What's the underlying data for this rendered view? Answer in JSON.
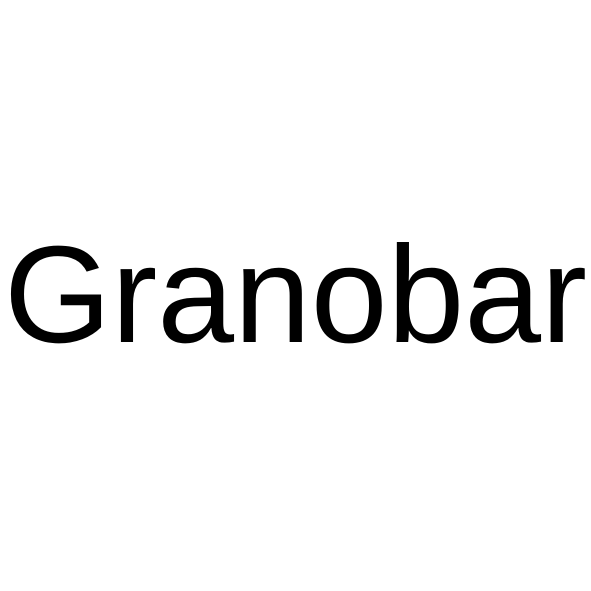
{
  "text": "Granobar",
  "colors": {
    "background": "#ffffff",
    "text": "#000000"
  }
}
